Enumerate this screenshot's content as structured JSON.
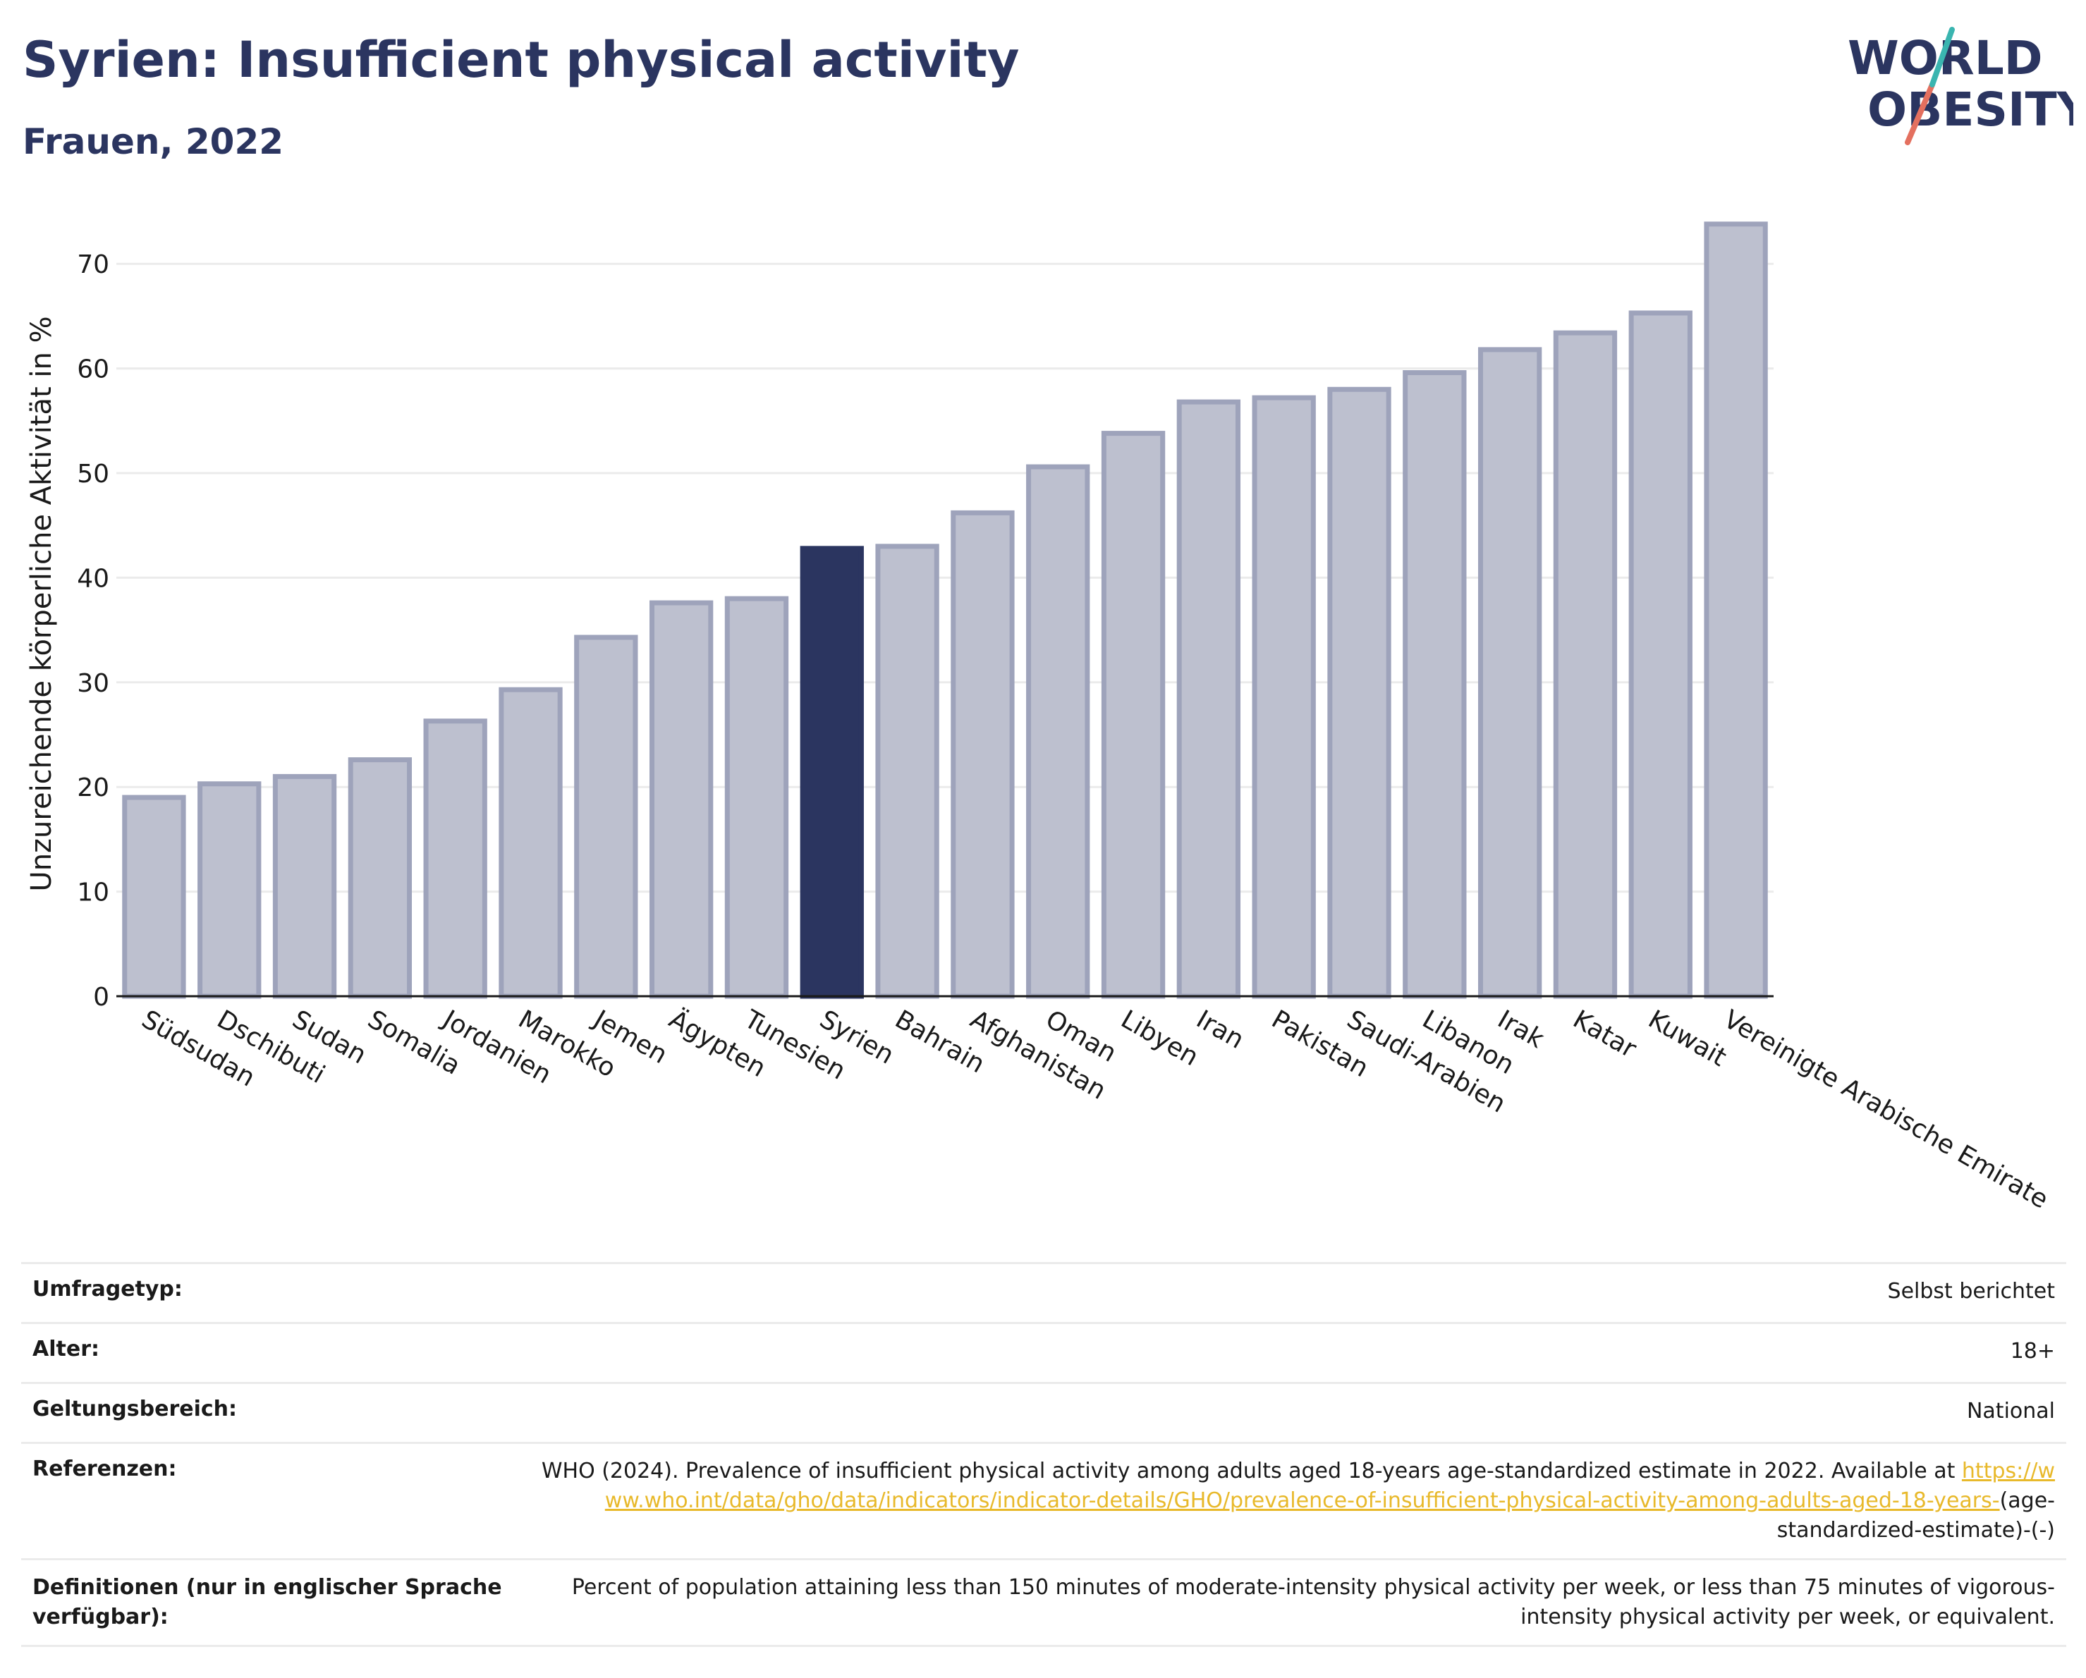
{
  "header": {
    "title": "Syrien: Insufficient physical activity",
    "subtitle": "Frauen, 2022"
  },
  "logo": {
    "line1": "WORLD",
    "line2": "OBESITY"
  },
  "chart_data": {
    "type": "bar",
    "ylabel": "Unzureichende körperliche Aktivität in %",
    "ylim": [
      0,
      75
    ],
    "yticks": [
      0,
      10,
      20,
      30,
      40,
      50,
      60,
      70
    ],
    "grid": true,
    "highlight": "Syrien",
    "colors": {
      "bar": "#bdc0cf",
      "bar_edge": "#9ea3bb",
      "highlight": "#2b3560"
    },
    "categories": [
      "Südsudan",
      "Dschibuti",
      "Sudan",
      "Somalia",
      "Jordanien",
      "Marokko",
      "Jemen",
      "Ägypten",
      "Tunesien",
      "Syrien",
      "Bahrain",
      "Afghanistan",
      "Oman",
      "Libyen",
      "Iran",
      "Pakistan",
      "Saudi-Arabien",
      "Libanon",
      "Irak",
      "Katar",
      "Kuwait",
      "Vereinigte Arabische Emirate"
    ],
    "values": [
      19.0,
      20.3,
      21.0,
      22.6,
      26.3,
      29.3,
      34.3,
      37.6,
      38.0,
      42.8,
      43.0,
      46.2,
      50.6,
      53.8,
      56.8,
      57.2,
      58.0,
      59.6,
      61.8,
      63.4,
      65.3,
      73.8
    ]
  },
  "info": {
    "survey_type": {
      "label": "Umfragetyp:",
      "value": "Selbst berichtet"
    },
    "age": {
      "label": "Alter:",
      "value": "18+"
    },
    "coverage": {
      "label": "Geltungsbereich:",
      "value": "National"
    },
    "references": {
      "label": "Referenzen:",
      "text": "WHO (2024). Prevalence of insufficient physical activity among adults aged 18-years age-standardized estimate in 2022. Available at",
      "link": "https://www.who.int/data/gho/data/indicators/indicator-details/GHO/prevalence-of-insufficient-physical-activity-among-adults-aged-18-years-",
      "suffix": "(age-standardized-estimate)-(-)"
    },
    "definitions": {
      "label": "Definitionen (nur in englischer Sprache verfügbar):",
      "value": "Percent of population attaining less than 150 minutes of moderate-intensity physical activity per week, or less than 75 minutes of vigorous-intensity physical activity per week, or equivalent."
    }
  }
}
